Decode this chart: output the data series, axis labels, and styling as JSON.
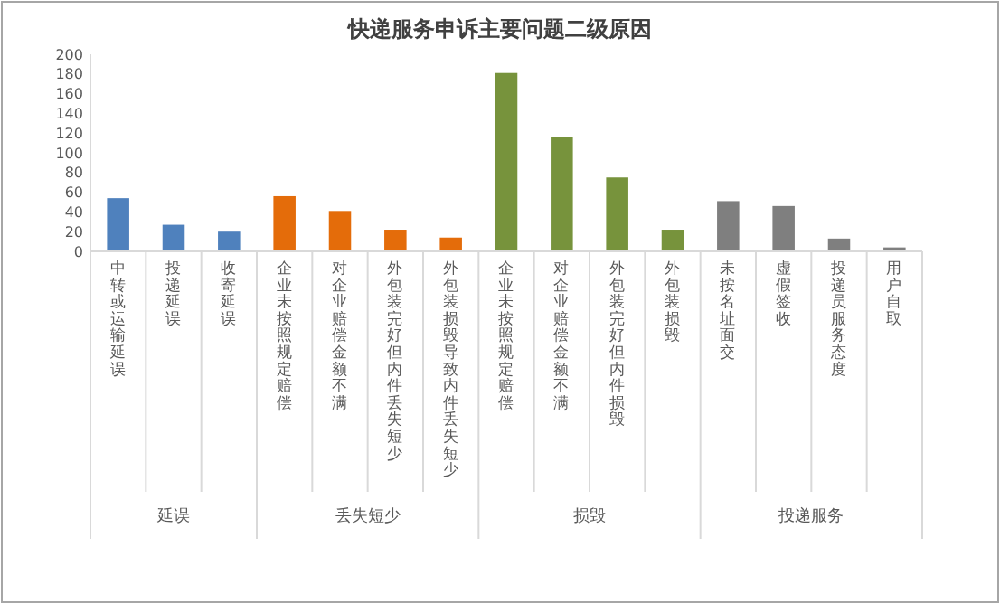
{
  "chart_data": {
    "type": "bar",
    "title": "快递服务申诉主要问题二级原因",
    "categories": [
      "中转或运输延误",
      "投递延误",
      "收寄延误",
      "企业未按照规定赔偿",
      "对企业赔偿金额不满",
      "外包装完好但内件丢失短少",
      "外包装损毁导致内件丢失短少",
      "企业未按照规定赔偿",
      "对企业赔偿金额不满",
      "外包装完好但内件损毁",
      "外包装损毁",
      "未按名址面交",
      "虚假签收",
      "投递员服务态度",
      "用户自取"
    ],
    "values": [
      54,
      27,
      20,
      56,
      41,
      22,
      14,
      181,
      116,
      75,
      22,
      51,
      46,
      13,
      4
    ],
    "colors": [
      "#4f81bd",
      "#4f81bd",
      "#4f81bd",
      "#e46c0a",
      "#e46c0a",
      "#e46c0a",
      "#e46c0a",
      "#77933c",
      "#77933c",
      "#77933c",
      "#77933c",
      "#7f7f7f",
      "#7f7f7f",
      "#7f7f7f",
      "#7f7f7f"
    ],
    "annotations": [
      "延误",
      "丢失短少",
      "损毁",
      "投递服务"
    ],
    "ylim": [
      0,
      200
    ],
    "yticks": [
      0,
      20,
      40,
      60,
      80,
      100,
      120,
      140,
      160,
      180,
      200
    ],
    "grid": false
  }
}
